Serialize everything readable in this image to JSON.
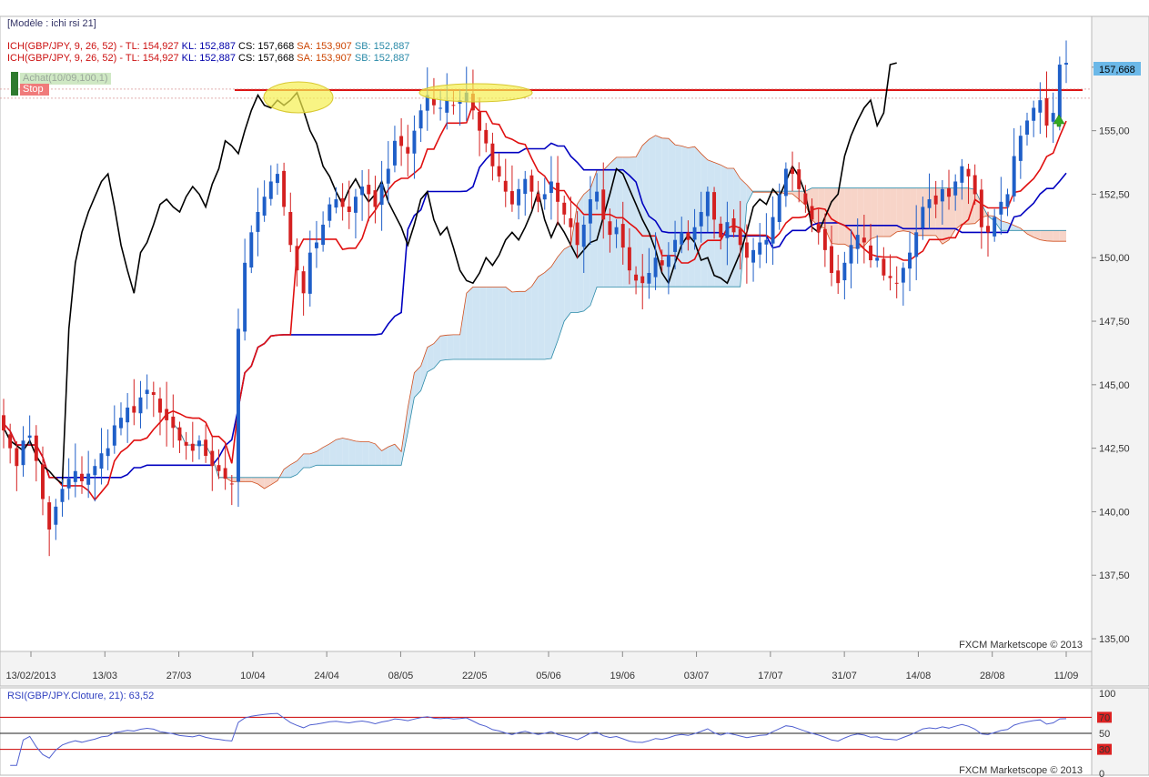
{
  "model_label": "[Modèle : ichi rsi 21]",
  "indicator_lines": [
    {
      "name": "ICH(GBP/JPY, 9, 26, 52)",
      "tl": "TL: 154,927",
      "kl": "KL: 152,887",
      "cs": "CS: 157,668",
      "sa": "SA: 153,907",
      "sb": "SB: 152,887"
    },
    {
      "name": "ICH(GBP/JPY, 9, 26, 52)",
      "tl": "TL: 154,927",
      "kl": "KL: 152,887",
      "cs": "CS: 157,668",
      "sa": "SA: 153,907",
      "sb": "SB: 152,887"
    }
  ],
  "separator": "-",
  "order_labels": {
    "buy": "Achat(10/09,100,1)",
    "stop": "Stop"
  },
  "last_price_label": "157,668",
  "watermark": "FXCM Marketscope © 2013",
  "rsi_label": "RSI(GBP/JPY.Cloture, 21): 63,52",
  "colors": {
    "up_candle": "#1f5fc8",
    "down_candle": "#d42020",
    "tenkan": "#e01010",
    "kijun": "#0000c0",
    "chikou": "#000000",
    "kumo_bull": "#cfe4f3",
    "kumo_bear": "#f7d4c8",
    "senkou_a": "#d05020",
    "senkou_b": "#2a8aa8",
    "rsi_line": "#5060d0",
    "level_line": "#cc0000"
  },
  "chart_data": [
    {
      "type": "candlestick",
      "title": "",
      "symbol": "GBP/JPY",
      "ylim": [
        134.5,
        159.5
      ],
      "y_ticks": [
        "135,00",
        "137,50",
        "140,00",
        "142,50",
        "145,00",
        "147,50",
        "150,00",
        "152,50",
        "155,00",
        "157,50"
      ],
      "y_tick_values": [
        135,
        137.5,
        140,
        142.5,
        145,
        147.5,
        150,
        152.5,
        155,
        157.5
      ],
      "x_labels": [
        "13/02/2013",
        "13/03",
        "27/03",
        "10/04",
        "24/04",
        "08/05",
        "22/05",
        "05/06",
        "19/06",
        "03/07",
        "17/07",
        "31/07",
        "14/08",
        "28/08",
        "11/09"
      ],
      "resistance_level": 156.6,
      "last_price": 157.668,
      "close": [
        143.2,
        142.5,
        141.8,
        142.8,
        143.0,
        142.0,
        140.5,
        139.3,
        140.2,
        140.9,
        141.3,
        141.6,
        141.2,
        141.5,
        141.8,
        142.3,
        142.5,
        143.4,
        143.7,
        144.1,
        143.9,
        144.5,
        144.8,
        144.6,
        143.9,
        143.6,
        143.3,
        142.8,
        142.6,
        142.4,
        142.8,
        142.2,
        141.8,
        141.6,
        141.3,
        141.1,
        147.2,
        149.8,
        151.0,
        151.8,
        152.4,
        153.0,
        153.3,
        152.0,
        150.5,
        149.5,
        148.6,
        150.2,
        150.6,
        151.3,
        152.1,
        152.3,
        152.0,
        151.8,
        152.4,
        152.8,
        152.5,
        152.0,
        152.9,
        153.5,
        154.6,
        154.4,
        154.1,
        155.0,
        155.8,
        156.4,
        156.0,
        155.9,
        156.2,
        156.0,
        156.2,
        156.5,
        155.8,
        155.0,
        154.5,
        153.6,
        153.2,
        152.6,
        152.1,
        152.7,
        153.1,
        152.6,
        152.2,
        152.5,
        153.0,
        152.2,
        151.7,
        151.2,
        150.5,
        151.3,
        152.3,
        152.6,
        151.5,
        150.9,
        151.2,
        150.4,
        149.5,
        149.1,
        149.0,
        149.4,
        150.0,
        149.7,
        150.1,
        150.7,
        151.0,
        150.7,
        151.2,
        151.8,
        152.6,
        151.5,
        150.8,
        151.4,
        151.0,
        150.5,
        150.0,
        150.3,
        150.6,
        150.7,
        151.6,
        152.5,
        153.5,
        153.3,
        152.7,
        152.1,
        151.5,
        151.0,
        150.3,
        149.4,
        149.0,
        149.8,
        150.5,
        150.9,
        150.6,
        149.9,
        150.0,
        149.3,
        149.2,
        149.0,
        149.6,
        150.2,
        151.0,
        152.0,
        152.3,
        152.1,
        152.7,
        152.4,
        153.0,
        153.6,
        153.2,
        152.5,
        151.2,
        151.0,
        151.6,
        152.2,
        152.5,
        154.0,
        154.8,
        155.4,
        155.9,
        156.2,
        155.2,
        155.7,
        157.6,
        157.67
      ]
    },
    {
      "type": "line",
      "title": "",
      "name": "RSI(GBP/JPY.Cloture, 21)",
      "last_value": 63.52,
      "ylim": [
        0,
        100
      ],
      "y_ticks": [
        "100",
        "70",
        "50",
        "30",
        "0"
      ],
      "y_tick_values": [
        100,
        70,
        50,
        30,
        0
      ]
    }
  ]
}
